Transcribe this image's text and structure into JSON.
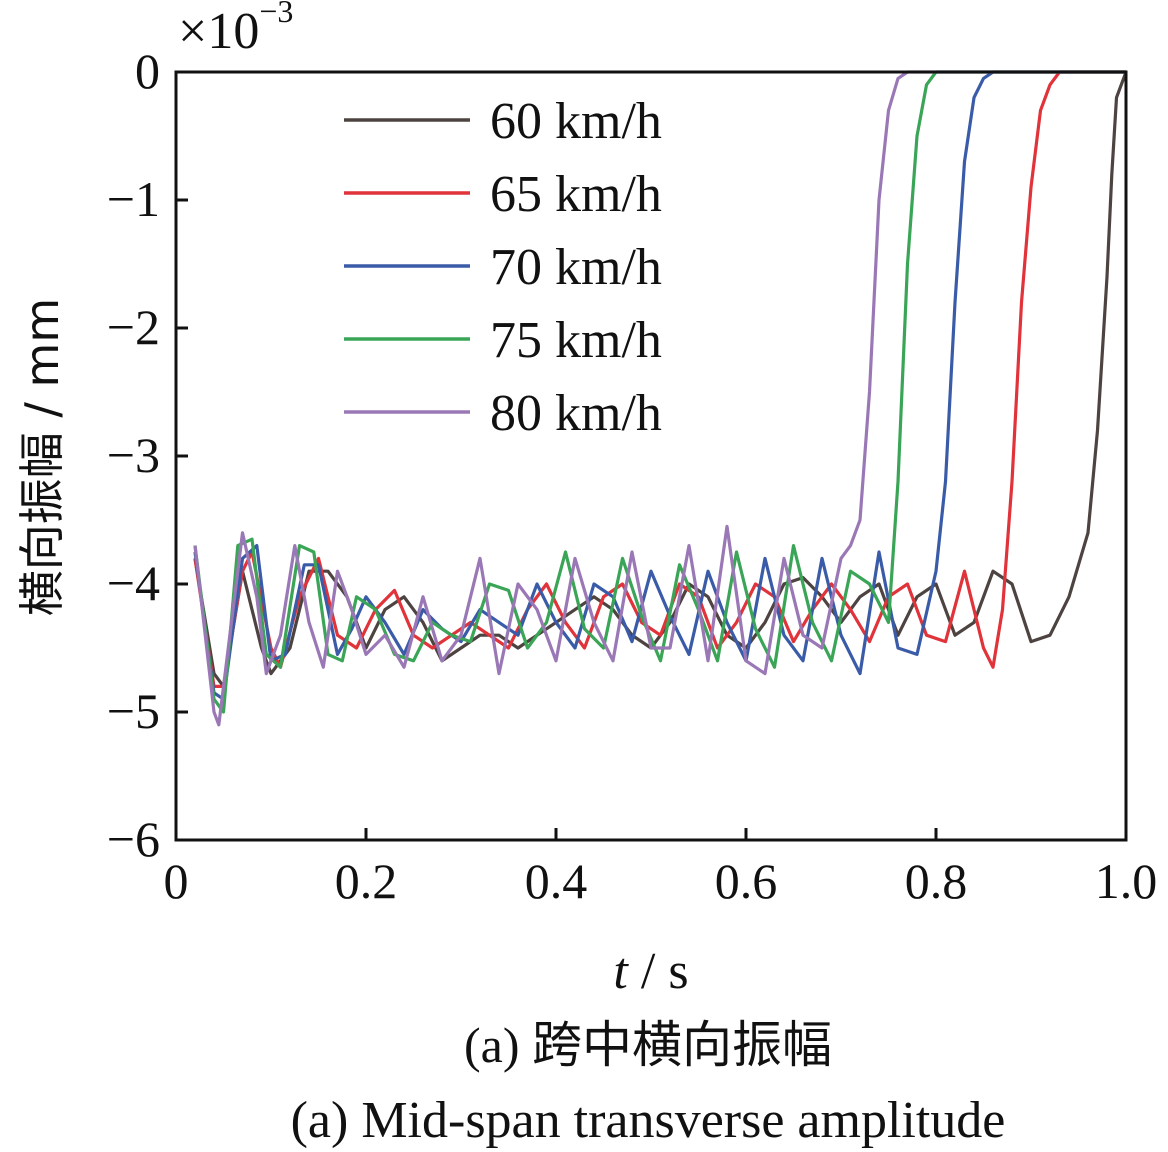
{
  "chart_data": {
    "type": "line",
    "xlabel_var": "t",
    "xlabel_unit": " / s",
    "ylabel": "横向振幅 / mm",
    "y_multiplier": "×10",
    "y_multiplier_exp": "−3",
    "xlim": [
      0,
      1.0
    ],
    "ylim": [
      -6,
      0
    ],
    "x_ticks": [
      "0",
      "0.2",
      "0.4",
      "0.6",
      "0.8",
      "1.0"
    ],
    "y_ticks": [
      "0",
      "−1",
      "−2",
      "−3",
      "−4",
      "−5",
      "−6"
    ],
    "legend_position": "top-left",
    "grid": false,
    "series": [
      {
        "name": "60 km/h",
        "color": "#4d4340",
        "x": [
          0.02,
          0.04,
          0.05,
          0.07,
          0.09,
          0.1,
          0.12,
          0.14,
          0.16,
          0.18,
          0.2,
          0.22,
          0.24,
          0.26,
          0.28,
          0.3,
          0.32,
          0.34,
          0.36,
          0.38,
          0.4,
          0.42,
          0.44,
          0.46,
          0.48,
          0.5,
          0.52,
          0.54,
          0.56,
          0.58,
          0.6,
          0.62,
          0.64,
          0.66,
          0.68,
          0.7,
          0.72,
          0.74,
          0.76,
          0.78,
          0.8,
          0.82,
          0.84,
          0.86,
          0.88,
          0.9,
          0.92,
          0.94,
          0.96,
          0.97,
          0.98,
          0.985,
          0.99,
          1.0
        ],
        "y": [
          -3.8,
          -4.7,
          -4.8,
          -3.9,
          -4.5,
          -4.7,
          -4.5,
          -3.9,
          -3.9,
          -4.1,
          -4.5,
          -4.2,
          -4.1,
          -4.3,
          -4.6,
          -4.5,
          -4.4,
          -4.4,
          -4.5,
          -4.4,
          -4.3,
          -4.2,
          -4.1,
          -4.2,
          -4.4,
          -4.5,
          -4.3,
          -4.0,
          -4.1,
          -4.4,
          -4.5,
          -4.3,
          -4.0,
          -3.95,
          -4.1,
          -4.3,
          -4.1,
          -4.0,
          -4.4,
          -4.1,
          -4.0,
          -4.4,
          -4.3,
          -3.9,
          -4.0,
          -4.45,
          -4.4,
          -4.1,
          -3.6,
          -2.8,
          -1.6,
          -0.8,
          -0.2,
          0
        ]
      },
      {
        "name": "65 km/h",
        "color": "#e0333a",
        "x": [
          0.02,
          0.04,
          0.05,
          0.07,
          0.08,
          0.1,
          0.11,
          0.13,
          0.15,
          0.17,
          0.19,
          0.21,
          0.23,
          0.25,
          0.27,
          0.29,
          0.31,
          0.33,
          0.35,
          0.37,
          0.39,
          0.41,
          0.43,
          0.45,
          0.47,
          0.49,
          0.51,
          0.53,
          0.55,
          0.57,
          0.59,
          0.61,
          0.63,
          0.65,
          0.67,
          0.69,
          0.71,
          0.73,
          0.75,
          0.77,
          0.79,
          0.81,
          0.83,
          0.85,
          0.86,
          0.87,
          0.88,
          0.89,
          0.9,
          0.91,
          0.92,
          0.93,
          0.94,
          1.0
        ],
        "y": [
          -3.8,
          -4.8,
          -4.8,
          -3.9,
          -3.75,
          -4.5,
          -4.65,
          -4.1,
          -3.8,
          -4.4,
          -4.5,
          -4.2,
          -4.05,
          -4.4,
          -4.5,
          -4.4,
          -4.3,
          -4.4,
          -4.5,
          -4.2,
          -4.0,
          -4.3,
          -4.5,
          -4.1,
          -4.0,
          -4.3,
          -4.4,
          -4.0,
          -4.1,
          -4.5,
          -4.3,
          -4.0,
          -4.1,
          -4.45,
          -4.2,
          -4.0,
          -4.2,
          -4.45,
          -4.1,
          -4.0,
          -4.4,
          -4.45,
          -3.9,
          -4.5,
          -4.65,
          -4.2,
          -3.2,
          -1.8,
          -0.9,
          -0.3,
          -0.1,
          0,
          0,
          0
        ]
      },
      {
        "name": "70 km/h",
        "color": "#3a5ca8",
        "x": [
          0.02,
          0.04,
          0.05,
          0.07,
          0.085,
          0.1,
          0.115,
          0.135,
          0.15,
          0.17,
          0.185,
          0.2,
          0.22,
          0.24,
          0.26,
          0.28,
          0.3,
          0.32,
          0.34,
          0.36,
          0.38,
          0.4,
          0.42,
          0.44,
          0.46,
          0.48,
          0.5,
          0.52,
          0.54,
          0.56,
          0.58,
          0.6,
          0.62,
          0.64,
          0.66,
          0.68,
          0.7,
          0.72,
          0.74,
          0.76,
          0.78,
          0.8,
          0.81,
          0.82,
          0.83,
          0.84,
          0.85,
          0.86,
          0.87,
          1.0
        ],
        "y": [
          -3.75,
          -4.85,
          -4.9,
          -3.8,
          -3.7,
          -4.6,
          -4.55,
          -3.85,
          -3.85,
          -4.55,
          -4.35,
          -4.1,
          -4.3,
          -4.55,
          -4.2,
          -4.35,
          -4.45,
          -4.2,
          -4.3,
          -4.4,
          -4.0,
          -4.3,
          -4.5,
          -4.0,
          -4.1,
          -4.45,
          -3.9,
          -4.25,
          -4.55,
          -3.9,
          -4.3,
          -4.6,
          -3.8,
          -4.4,
          -4.6,
          -3.8,
          -4.4,
          -4.7,
          -3.75,
          -4.5,
          -4.55,
          -3.9,
          -3.2,
          -1.8,
          -0.7,
          -0.2,
          -0.05,
          0,
          0,
          0
        ]
      },
      {
        "name": "75 km/h",
        "color": "#3aa556",
        "x": [
          0.02,
          0.04,
          0.05,
          0.065,
          0.08,
          0.095,
          0.11,
          0.13,
          0.145,
          0.16,
          0.175,
          0.19,
          0.21,
          0.23,
          0.25,
          0.27,
          0.29,
          0.31,
          0.33,
          0.35,
          0.37,
          0.39,
          0.41,
          0.43,
          0.45,
          0.47,
          0.49,
          0.51,
          0.53,
          0.55,
          0.57,
          0.59,
          0.61,
          0.63,
          0.65,
          0.67,
          0.69,
          0.71,
          0.73,
          0.75,
          0.76,
          0.77,
          0.78,
          0.79,
          0.8,
          0.81,
          0.82,
          1.0
        ],
        "y": [
          -3.7,
          -4.9,
          -5.0,
          -3.7,
          -3.65,
          -4.55,
          -4.65,
          -3.7,
          -3.75,
          -4.55,
          -4.6,
          -4.1,
          -4.2,
          -4.55,
          -4.6,
          -4.3,
          -4.4,
          -4.45,
          -4.0,
          -4.05,
          -4.5,
          -4.3,
          -3.75,
          -4.35,
          -4.5,
          -3.8,
          -4.25,
          -4.6,
          -3.85,
          -4.2,
          -4.6,
          -3.75,
          -4.35,
          -4.65,
          -3.7,
          -4.3,
          -4.6,
          -3.9,
          -4.0,
          -4.3,
          -3.2,
          -1.5,
          -0.5,
          -0.1,
          0,
          0,
          0,
          0
        ]
      },
      {
        "name": "80 km/h",
        "color": "#9a78b6",
        "x": [
          0.02,
          0.04,
          0.045,
          0.06,
          0.07,
          0.085,
          0.095,
          0.11,
          0.125,
          0.14,
          0.155,
          0.17,
          0.185,
          0.2,
          0.22,
          0.24,
          0.26,
          0.28,
          0.3,
          0.32,
          0.34,
          0.36,
          0.38,
          0.4,
          0.42,
          0.44,
          0.46,
          0.48,
          0.5,
          0.52,
          0.54,
          0.56,
          0.58,
          0.6,
          0.62,
          0.64,
          0.66,
          0.68,
          0.7,
          0.71,
          0.72,
          0.73,
          0.74,
          0.75,
          0.76,
          0.77,
          1.0
        ],
        "y": [
          -3.7,
          -5.0,
          -5.1,
          -4.2,
          -3.6,
          -4.1,
          -4.7,
          -4.4,
          -3.7,
          -4.3,
          -4.65,
          -3.9,
          -4.2,
          -4.55,
          -4.4,
          -4.65,
          -4.1,
          -4.6,
          -4.4,
          -3.8,
          -4.7,
          -4.0,
          -4.2,
          -4.6,
          -3.8,
          -4.3,
          -4.6,
          -3.75,
          -4.5,
          -4.5,
          -3.7,
          -4.6,
          -3.55,
          -4.6,
          -4.7,
          -3.8,
          -4.4,
          -4.5,
          -3.8,
          -3.7,
          -3.5,
          -2.5,
          -1.0,
          -0.3,
          -0.05,
          0,
          0
        ]
      }
    ]
  },
  "caption_cn": "(a)  跨中横向振幅",
  "caption_en": "(a)  Mid-span transverse amplitude"
}
